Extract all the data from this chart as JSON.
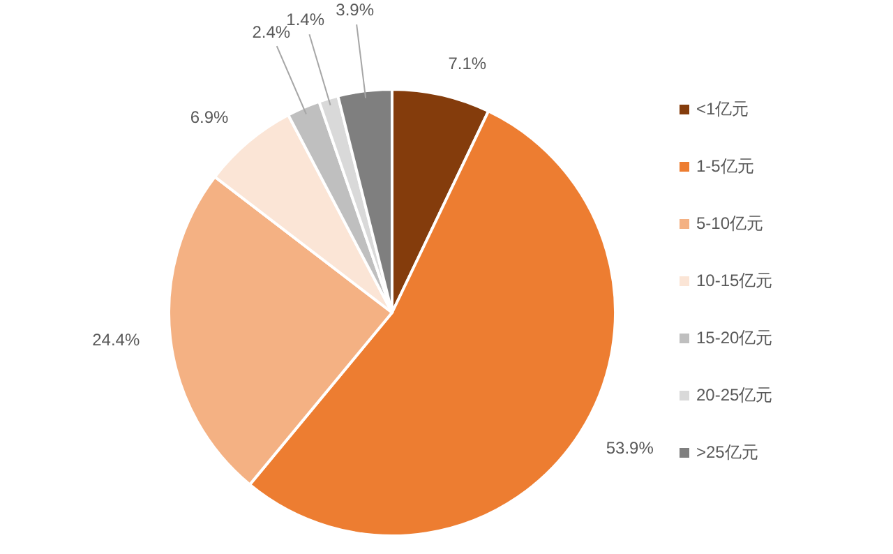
{
  "chart_data": {
    "type": "pie",
    "categories": [
      "<1亿元",
      "1-5亿元",
      "5-10亿元",
      "10-15亿元",
      "15-20亿元",
      "20-25亿元",
      ">25亿元"
    ],
    "values": [
      7.1,
      53.9,
      24.4,
      6.9,
      2.4,
      1.4,
      3.9
    ],
    "value_labels": [
      "7.1%",
      "53.9%",
      "24.4%",
      "6.9%",
      "2.4%",
      "1.4%",
      "3.9%"
    ],
    "colors": [
      "#843c0c",
      "#ed7d31",
      "#f4b183",
      "#fbe5d6",
      "#bfbfbf",
      "#d9d9d9",
      "#7f7f7f"
    ],
    "legend": "right"
  }
}
